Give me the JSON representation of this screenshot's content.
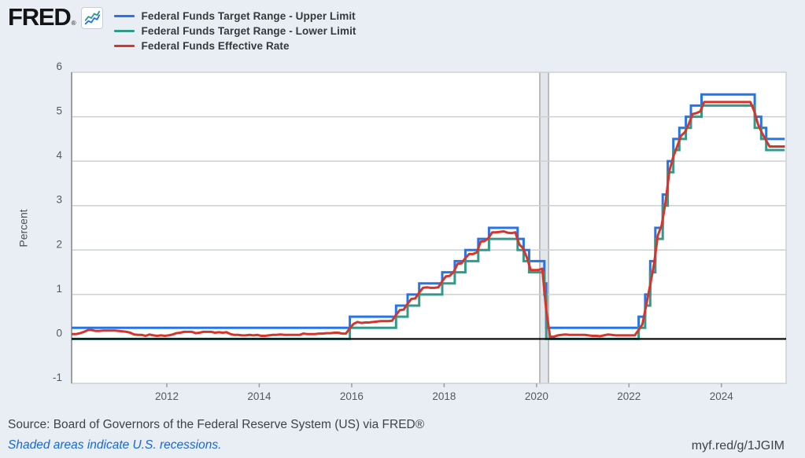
{
  "header": {
    "logo_text": "FRED",
    "registered_mark": "®"
  },
  "chart_data": {
    "type": "line",
    "title": "",
    "xlabel": "",
    "ylabel": "Percent",
    "xlim": [
      2009.94,
      2025.4
    ],
    "ylim": [
      -1,
      6
    ],
    "x_ticks": [
      2012,
      2014,
      2016,
      2018,
      2020,
      2022,
      2024
    ],
    "y_ticks": [
      -1,
      0,
      1,
      2,
      3,
      4,
      5,
      6
    ],
    "grid": true,
    "legend_position": "top-left",
    "recessions": [
      {
        "start": 2020.07,
        "end": 2020.26
      }
    ],
    "series": [
      {
        "name": "Federal Funds Target Range - Upper Limit",
        "slug": "upper-limit",
        "color": "#2574e8",
        "style": "step",
        "points": [
          [
            2009.94,
            0.25
          ],
          [
            2015.96,
            0.5
          ],
          [
            2016.96,
            0.75
          ],
          [
            2017.21,
            1.0
          ],
          [
            2017.46,
            1.25
          ],
          [
            2017.96,
            1.5
          ],
          [
            2018.23,
            1.75
          ],
          [
            2018.46,
            2.0
          ],
          [
            2018.74,
            2.25
          ],
          [
            2018.97,
            2.5
          ],
          [
            2019.59,
            2.25
          ],
          [
            2019.72,
            2.0
          ],
          [
            2019.84,
            1.75
          ],
          [
            2020.17,
            1.25
          ],
          [
            2020.21,
            0.25
          ],
          [
            2022.21,
            0.5
          ],
          [
            2022.35,
            1.0
          ],
          [
            2022.46,
            1.75
          ],
          [
            2022.57,
            2.5
          ],
          [
            2022.73,
            3.25
          ],
          [
            2022.84,
            4.0
          ],
          [
            2022.96,
            4.5
          ],
          [
            2023.09,
            4.75
          ],
          [
            2023.23,
            5.0
          ],
          [
            2023.34,
            5.25
          ],
          [
            2023.57,
            5.5
          ],
          [
            2024.72,
            5.0
          ],
          [
            2024.86,
            4.75
          ],
          [
            2024.97,
            4.5
          ],
          [
            2025.37,
            4.5
          ]
        ]
      },
      {
        "name": "Federal Funds Target Range - Lower Limit",
        "slug": "lower-limit",
        "color": "#339a8b",
        "style": "step",
        "points": [
          [
            2009.94,
            0.0
          ],
          [
            2015.96,
            0.25
          ],
          [
            2016.96,
            0.5
          ],
          [
            2017.21,
            0.75
          ],
          [
            2017.46,
            1.0
          ],
          [
            2017.96,
            1.25
          ],
          [
            2018.23,
            1.5
          ],
          [
            2018.46,
            1.75
          ],
          [
            2018.74,
            2.0
          ],
          [
            2018.97,
            2.25
          ],
          [
            2019.59,
            2.0
          ],
          [
            2019.72,
            1.75
          ],
          [
            2019.84,
            1.5
          ],
          [
            2020.17,
            1.0
          ],
          [
            2020.21,
            0.0
          ],
          [
            2022.21,
            0.25
          ],
          [
            2022.35,
            0.75
          ],
          [
            2022.46,
            1.5
          ],
          [
            2022.57,
            2.25
          ],
          [
            2022.73,
            3.0
          ],
          [
            2022.84,
            3.75
          ],
          [
            2022.96,
            4.25
          ],
          [
            2023.09,
            4.5
          ],
          [
            2023.23,
            4.75
          ],
          [
            2023.34,
            5.0
          ],
          [
            2023.57,
            5.25
          ],
          [
            2024.72,
            4.75
          ],
          [
            2024.86,
            4.5
          ],
          [
            2024.97,
            4.25
          ],
          [
            2025.37,
            4.25
          ]
        ]
      },
      {
        "name": "Federal Funds Effective Rate",
        "slug": "effective-rate",
        "color": "#d6352c",
        "style": "line",
        "monthly_start": 2010,
        "monthly_values": [
          0.11,
          0.13,
          0.16,
          0.2,
          0.2,
          0.18,
          0.18,
          0.19,
          0.19,
          0.19,
          0.19,
          0.18,
          0.17,
          0.16,
          0.14,
          0.1,
          0.09,
          0.09,
          0.07,
          0.1,
          0.08,
          0.07,
          0.08,
          0.07,
          0.08,
          0.1,
          0.13,
          0.14,
          0.16,
          0.16,
          0.16,
          0.13,
          0.14,
          0.16,
          0.16,
          0.16,
          0.14,
          0.15,
          0.14,
          0.15,
          0.11,
          0.09,
          0.09,
          0.08,
          0.08,
          0.09,
          0.08,
          0.09,
          0.07,
          0.07,
          0.08,
          0.09,
          0.09,
          0.1,
          0.09,
          0.09,
          0.09,
          0.09,
          0.09,
          0.12,
          0.11,
          0.11,
          0.11,
          0.12,
          0.12,
          0.13,
          0.13,
          0.14,
          0.14,
          0.12,
          0.12,
          0.24,
          0.34,
          0.38,
          0.36,
          0.37,
          0.37,
          0.38,
          0.39,
          0.4,
          0.4,
          0.4,
          0.41,
          0.54,
          0.65,
          0.66,
          0.79,
          0.9,
          0.91,
          1.04,
          1.15,
          1.16,
          1.15,
          1.15,
          1.16,
          1.3,
          1.41,
          1.42,
          1.51,
          1.69,
          1.7,
          1.82,
          1.91,
          1.91,
          1.95,
          2.19,
          2.2,
          2.27,
          2.4,
          2.4,
          2.41,
          2.42,
          2.39,
          2.38,
          2.4,
          2.13,
          2.04,
          1.83,
          1.55,
          1.55,
          1.55,
          1.58,
          0.65,
          0.05,
          0.05,
          0.08,
          0.09,
          0.1,
          0.09,
          0.09,
          0.09,
          0.09,
          0.09,
          0.08,
          0.07,
          0.07,
          0.06,
          0.08,
          0.1,
          0.09,
          0.08,
          0.08,
          0.08,
          0.08,
          0.08,
          0.08,
          0.2,
          0.33,
          0.77,
          1.21,
          1.68,
          2.33,
          2.56,
          3.08,
          3.78,
          4.1,
          4.33,
          4.57,
          4.65,
          4.83,
          5.06,
          5.08,
          5.12,
          5.33,
          5.33,
          5.33,
          5.33,
          5.33,
          5.33,
          5.33,
          5.33,
          5.33,
          5.33,
          5.33,
          5.33,
          5.33,
          5.13,
          4.83,
          4.64,
          4.48,
          4.33,
          4.33,
          4.33,
          4.33,
          4.33
        ]
      }
    ]
  },
  "footer": {
    "source": "Source: Board of Governors of the Federal Reserve System (US) via FRED®",
    "recession_note": "Shaded areas indicate U.S. recessions.",
    "permalink": "myf.red/g/1JGIM"
  },
  "colors": {
    "background": "#e8eef4",
    "plot_background": "#ffffff",
    "grid": "#cdd0d3",
    "axis_line": "#9b9ea3",
    "axis_text": "#55585d",
    "zero_line": "#000000",
    "recession_fill": "#e3e6ea",
    "recession_edge": "#a8abb0"
  }
}
